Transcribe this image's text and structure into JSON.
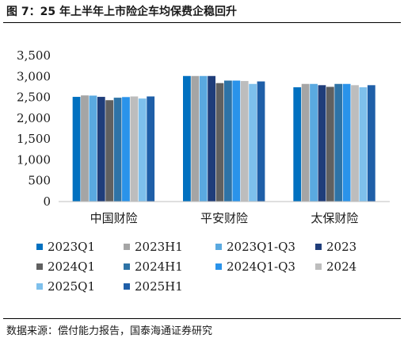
{
  "header": {
    "title": "图 7：25 年上半年上市险企车均保费企稳回升"
  },
  "footer": {
    "source": "数据来源：偿付能力报告，国泰海通证券研究"
  },
  "colors": {
    "2023Q1": "#0070c0",
    "2023H1": "#a5a5a5",
    "2023Q1-Q3": "#5aa9e0",
    "2023": "#1f3d7a",
    "2024Q1": "#606060",
    "2024H1": "#2e73a6",
    "2024Q1-Q3": "#2a93ea",
    "2024": "#bdbdbd",
    "2025Q1": "#7ec0ec",
    "2025H1": "#1f5fa8"
  },
  "chart_data": {
    "type": "bar",
    "title": "",
    "xlabel": "",
    "ylabel": "",
    "ylim": [
      0,
      3500
    ],
    "yticks": [
      0,
      500,
      1000,
      1500,
      2000,
      2500,
      3000,
      3500
    ],
    "ytick_labels": [
      "0",
      "500",
      "1,000",
      "1,500",
      "2,000",
      "2,500",
      "3,000",
      "3,500"
    ],
    "grid": false,
    "legend_position": "bottom",
    "categories": [
      "中国财险",
      "平安财险",
      "太保财险"
    ],
    "series": [
      {
        "name": "2023Q1",
        "values": [
          2510,
          3010,
          2740
        ]
      },
      {
        "name": "2023H1",
        "values": [
          2545,
          3010,
          2820
        ]
      },
      {
        "name": "2023Q1-Q3",
        "values": [
          2540,
          3010,
          2820
        ]
      },
      {
        "name": "2023",
        "values": [
          2510,
          3010,
          2790
        ]
      },
      {
        "name": "2024Q1",
        "values": [
          2430,
          2840,
          2750
        ]
      },
      {
        "name": "2024H1",
        "values": [
          2490,
          2900,
          2820
        ]
      },
      {
        "name": "2024Q1-Q3",
        "values": [
          2505,
          2900,
          2820
        ]
      },
      {
        "name": "2024",
        "values": [
          2520,
          2890,
          2790
        ]
      },
      {
        "name": "2025Q1",
        "values": [
          2470,
          2820,
          2740
        ]
      },
      {
        "name": "2025H1",
        "values": [
          2520,
          2880,
          2790
        ]
      }
    ]
  }
}
